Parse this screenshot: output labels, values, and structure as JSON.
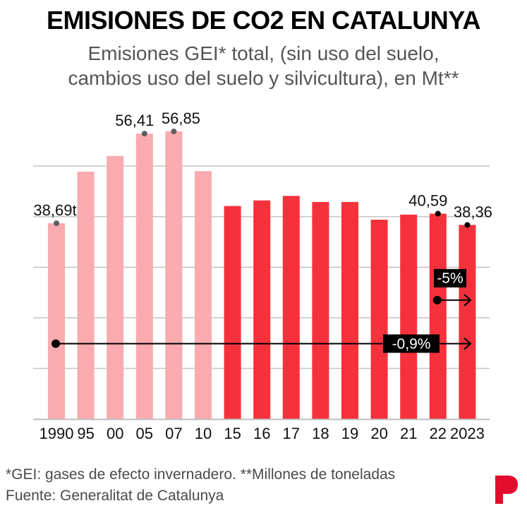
{
  "header": {
    "title": "EMISIONES DE CO2 EN CATALUNYA",
    "subtitle_lines": [
      "Emisiones GEI* total, (sin uso del suelo,",
      "cambios uso del suelo y silvicultura), en Mt**"
    ]
  },
  "footer": {
    "note": "*GEI: gases de efecto invernadero. **Millones de toneladas",
    "source": "Fuente: Generalitat de Catalunya",
    "logo": "P"
  },
  "colors": {
    "bar_early": "#F9ABB0",
    "bar_recent": "#F5313B",
    "gridline": "#c4c4c4",
    "marker_gray": "#5f5f5f",
    "marker_black": "#000000",
    "logo": "#E30D2E"
  },
  "chart_data": {
    "type": "bar",
    "title": "EMISIONES DE CO2 EN CATALUNYA",
    "subtitle": "Emisiones GEI* total, (sin uso del suelo, cambios uso del suelo y silvicultura), en Mt**",
    "xlabel": "",
    "ylabel": "",
    "categories": [
      "1990",
      "95",
      "00",
      "05",
      "07",
      "10",
      "15",
      "16",
      "17",
      "18",
      "19",
      "20",
      "21",
      "22",
      "2023"
    ],
    "values": [
      38.69,
      48.9,
      52.0,
      56.41,
      56.85,
      49.0,
      42.1,
      43.2,
      44.1,
      42.9,
      42.9,
      39.4,
      40.4,
      40.59,
      38.36
    ],
    "bar_group": [
      "early",
      "early",
      "early",
      "early",
      "early",
      "early",
      "recent",
      "recent",
      "recent",
      "recent",
      "recent",
      "recent",
      "recent",
      "recent",
      "recent"
    ],
    "ylim": [
      0,
      60
    ],
    "gridlines": [
      10,
      20,
      30,
      40,
      50
    ],
    "grid": true,
    "y_tick_labels_shown": false,
    "data_labels": [
      {
        "index": 0,
        "text": "38,69t",
        "marker": "gray"
      },
      {
        "index": 3,
        "text": "56,41",
        "marker": "gray"
      },
      {
        "index": 4,
        "text": "56,85",
        "marker": "gray"
      },
      {
        "index": 13,
        "text": "40,59",
        "marker": "black"
      },
      {
        "index": 14,
        "text": "38,36",
        "marker": "black"
      }
    ],
    "annotations": [
      {
        "from_index": 13,
        "to_index": 14,
        "level": 23.5,
        "text": "-5%"
      },
      {
        "from_index": 0,
        "to_index": 14,
        "level": 14.9,
        "text": "-0,9%"
      }
    ]
  }
}
